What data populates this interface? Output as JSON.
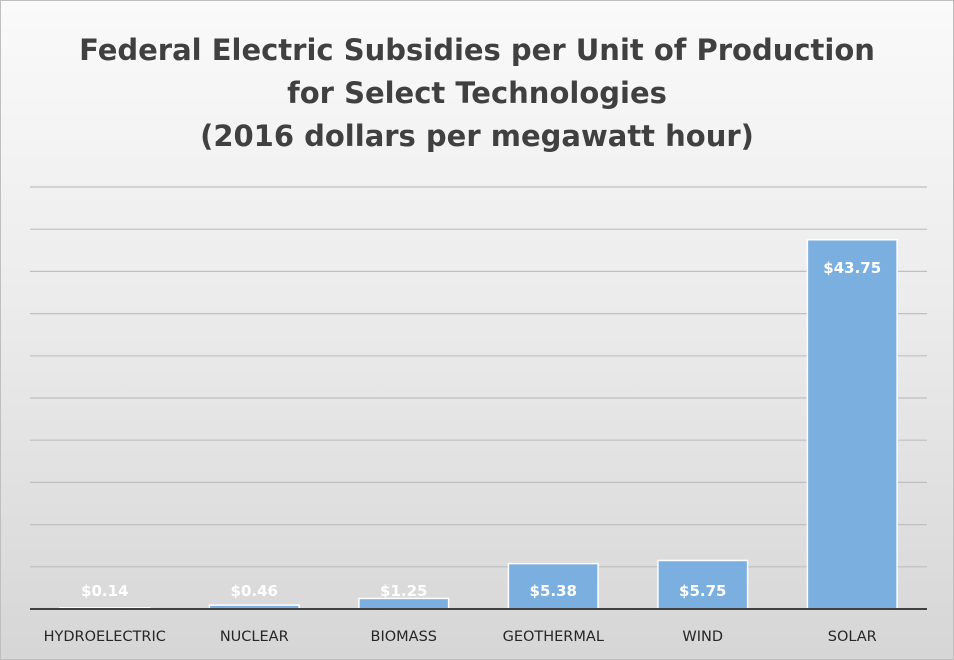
{
  "chart_data": {
    "type": "bar",
    "title_lines": [
      "Federal Electric Subsidies per Unit of Production",
      "for Select Technologies",
      "(2016 dollars per megawatt hour)"
    ],
    "categories": [
      "HYDROELECTRIC",
      "NUCLEAR",
      "BIOMASS",
      "GEOTHERMAL",
      "WIND",
      "SOLAR"
    ],
    "values": [
      0.14,
      0.46,
      1.25,
      5.38,
      5.75,
      43.75
    ],
    "data_labels": [
      "$0.14",
      "$0.46",
      "$1.25",
      "$5.38",
      "$5.75",
      "$43.75"
    ],
    "ylim": [
      0,
      50
    ],
    "grid": true,
    "legend": "none",
    "colors": {
      "bar": "#7aafdf",
      "bar_edge": "#ffffff",
      "gridline": "#bfbfbf",
      "axis": "#404040",
      "title": "#404040",
      "category_label": "#262626",
      "data_label": "#ffffff"
    }
  }
}
